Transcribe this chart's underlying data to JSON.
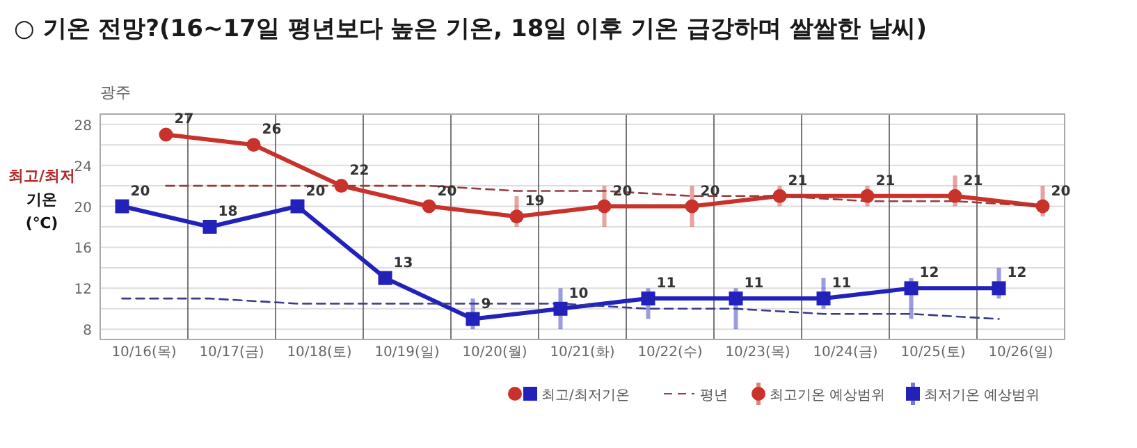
{
  "chart_data": {
    "type": "line",
    "title": "○ 기온 전망?(16~17일 평년보다 높은 기온, 18일 이후 기온 급강하며 쌀쌀한 날씨)",
    "subtitle": "광주",
    "ylabel": "최고/최저 기온 (℃)",
    "categories": [
      "10/16(목)",
      "10/17(금)",
      "10/18(토)",
      "10/19(일)",
      "10/20(월)",
      "10/21(화)",
      "10/22(수)",
      "10/23(목)",
      "10/24(금)",
      "10/25(토)",
      "10/26(일)"
    ],
    "series": [
      {
        "name": "최고/최저기온",
        "color": "#c8322a",
        "marker": "circle",
        "values": [
          27,
          26,
          22,
          20,
          19,
          20,
          20,
          21,
          21,
          21,
          20
        ],
        "value_labels": [
          "27",
          "26",
          "22",
          "20",
          "19",
          "20",
          "20",
          "21",
          "21",
          "21",
          "20"
        ],
        "errors": [
          null,
          null,
          null,
          null,
          [
            18,
            21
          ],
          [
            18,
            22
          ],
          [
            18,
            22
          ],
          [
            20,
            22
          ],
          [
            20,
            22
          ],
          [
            20,
            23
          ],
          [
            19,
            22
          ]
        ]
      },
      {
        "color": "#2222bb",
        "marker": "square",
        "values": [
          20,
          18,
          20,
          13,
          9,
          10,
          11,
          11,
          11,
          12,
          12
        ],
        "value_labels": [
          "20",
          "18",
          "20",
          "13",
          "9",
          "10",
          "11",
          "11",
          "11",
          "12",
          "12"
        ],
        "errors": [
          null,
          null,
          null,
          null,
          [
            8,
            11
          ],
          [
            8,
            12
          ],
          [
            9,
            12
          ],
          [
            8,
            12
          ],
          [
            10,
            13
          ],
          [
            9,
            13
          ],
          [
            11,
            14
          ]
        ]
      },
      {
        "name": "평년",
        "color": "#9a3a3a",
        "marker": "none",
        "line_style": "dashed",
        "values": [
          22,
          22,
          22,
          22,
          21.5,
          21.5,
          21,
          21,
          20.5,
          20.5,
          20
        ]
      },
      {
        "color": "#3a3a8a",
        "marker": "none",
        "line_style": "dashed",
        "values": [
          11,
          11,
          10.5,
          10.5,
          10.5,
          10.5,
          10,
          10,
          9.5,
          9.5,
          9
        ]
      }
    ],
    "annotations": [
      "최고기온 예상범위",
      "최저기온 예상범위"
    ],
    "ylim": [
      7,
      29
    ],
    "yticks": [
      8,
      {
        "value": 10,
        "label": null
      },
      12,
      {
        "value": 14,
        "label": null
      },
      16,
      {
        "value": 18,
        "label": null
      },
      20,
      {
        "value": 22,
        "label": null
      },
      24,
      {
        "value": 26,
        "label": null
      },
      28
    ],
    "grid": true,
    "legend": "bottom"
  }
}
